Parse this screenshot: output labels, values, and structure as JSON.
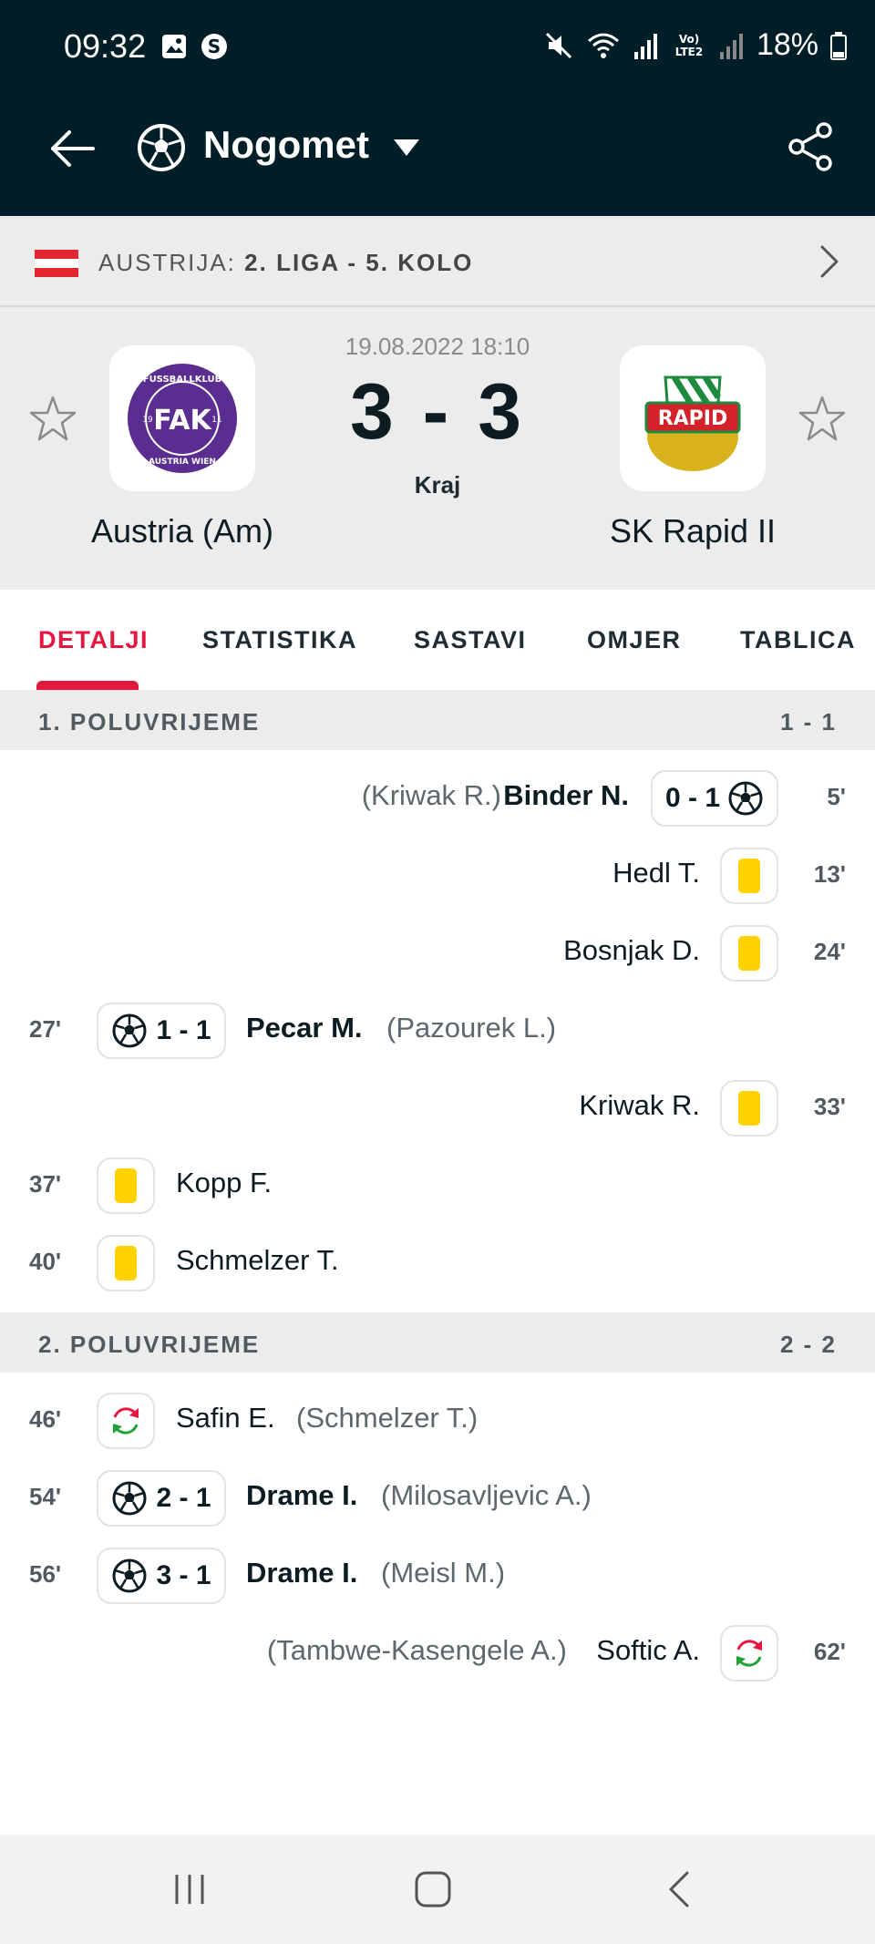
{
  "status": {
    "time": "09:32",
    "battery": "18%",
    "left_icons": [
      "gallery-icon",
      "s-app-icon"
    ],
    "right_icons": [
      "mute-icon",
      "wifi-icon",
      "signal-icon",
      "volte-icon",
      "signal-icon",
      "battery-icon"
    ],
    "volte_label": "Vo) LTE2"
  },
  "appbar": {
    "sport": "Nogomet",
    "back_icon": "arrow-left-icon",
    "share_icon": "share-icon"
  },
  "league": {
    "country": "AUSTRIJA:",
    "competition": "2. LIGA - 5. KOLO"
  },
  "match": {
    "date": "19.08.2022 18:10",
    "score": "3 - 3",
    "status": "Kraj",
    "home": {
      "name": "Austria (Am)",
      "logo_text_top": "FUSSBALLKLUB",
      "logo_text_bottom": "AUSTRIA WIEN",
      "logo_initials": "FAK",
      "logo_year_left": "19",
      "logo_year_right": "11"
    },
    "away": {
      "name": "SK Rapid II",
      "logo_text": "RAPID"
    }
  },
  "tabs": [
    {
      "label": "DETALJI",
      "active": true
    },
    {
      "label": "STATISTIKA",
      "active": false
    },
    {
      "label": "SASTAVI",
      "active": false
    },
    {
      "label": "OMJER",
      "active": false
    },
    {
      "label": "TABLICA",
      "active": false
    }
  ],
  "first_half": {
    "title": "1. POLUVRIJEME",
    "score": "1 - 1",
    "events": [
      {
        "minute": "5'",
        "side": "away",
        "type": "goal",
        "score": "0 - 1",
        "player": "Binder N.",
        "assist": "(Kriwak R.)"
      },
      {
        "minute": "13'",
        "side": "away",
        "type": "yellow",
        "player": "Hedl T."
      },
      {
        "minute": "24'",
        "side": "away",
        "type": "yellow",
        "player": "Bosnjak D."
      },
      {
        "minute": "27'",
        "side": "home",
        "type": "goal",
        "score": "1 - 1",
        "player": "Pecar M.",
        "assist": "(Pazourek L.)"
      },
      {
        "minute": "33'",
        "side": "away",
        "type": "yellow",
        "player": "Kriwak R."
      },
      {
        "minute": "37'",
        "side": "home",
        "type": "yellow",
        "player": "Kopp F."
      },
      {
        "minute": "40'",
        "side": "home",
        "type": "yellow",
        "player": "Schmelzer T."
      }
    ]
  },
  "second_half": {
    "title": "2. POLUVRIJEME",
    "score": "2 - 2",
    "events": [
      {
        "minute": "46'",
        "side": "home",
        "type": "sub",
        "player": "Safin E.",
        "assist": "(Schmelzer T.)"
      },
      {
        "minute": "54'",
        "side": "home",
        "type": "goal",
        "score": "2 - 1",
        "player": "Drame I.",
        "assist": "(Milosavljevic A.)"
      },
      {
        "minute": "56'",
        "side": "home",
        "type": "goal",
        "score": "3 - 1",
        "player": "Drame I.",
        "assist": "(Meisl M.)"
      },
      {
        "minute": "62'",
        "side": "away",
        "type": "sub",
        "player": "Softic A.",
        "assist": "(Tambwe-Kasengele A.)"
      }
    ]
  },
  "colors": {
    "header_bg": "#001e28",
    "accent": "#e5173f",
    "yellow_card": "#ffd200",
    "austria_purple": "#5b2d91",
    "rapid_green": "#1e8a3c"
  },
  "navbar": {
    "icons": [
      "recent-apps-icon",
      "home-icon",
      "back-icon"
    ]
  }
}
